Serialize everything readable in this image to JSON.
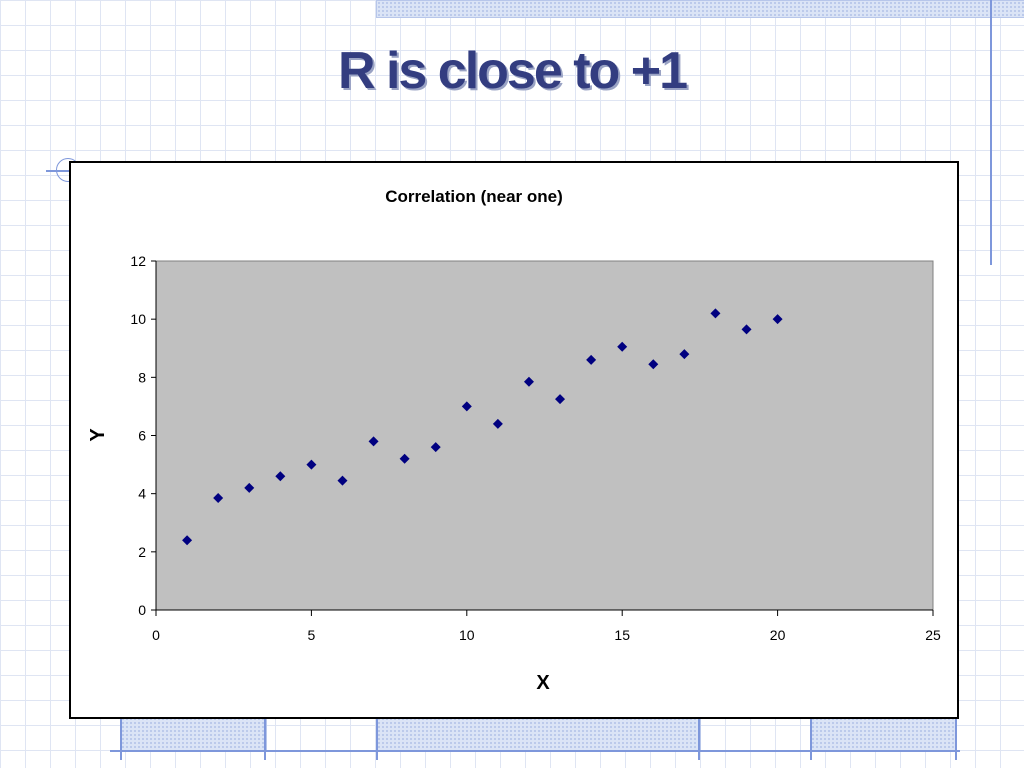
{
  "slide": {
    "title": "R is close to +1"
  },
  "colors": {
    "title": "#333d80",
    "plot_background": "#c0c0c0",
    "marker": "#000080",
    "grid_lines": "#dfe5f3"
  },
  "chart_data": {
    "type": "scatter",
    "title": "Correlation (near one)",
    "xlabel": "X",
    "ylabel": "Y",
    "xlim": [
      0,
      25
    ],
    "ylim": [
      0,
      12
    ],
    "x_ticks": [
      0,
      5,
      10,
      15,
      20,
      25
    ],
    "y_ticks": [
      0,
      2,
      4,
      6,
      8,
      10,
      12
    ],
    "grid": false,
    "legend": "none",
    "marker": "diamond",
    "series": [
      {
        "x": [
          1,
          2,
          3,
          4,
          5,
          6,
          7,
          8,
          9,
          10,
          11,
          12,
          13,
          14,
          15,
          16,
          17,
          18,
          19,
          20
        ],
        "y": [
          2.4,
          3.85,
          4.2,
          4.6,
          5.0,
          4.45,
          5.8,
          5.2,
          5.6,
          7.0,
          6.4,
          7.85,
          7.25,
          8.6,
          9.05,
          8.45,
          8.8,
          10.2,
          9.65,
          10.0
        ]
      }
    ]
  }
}
